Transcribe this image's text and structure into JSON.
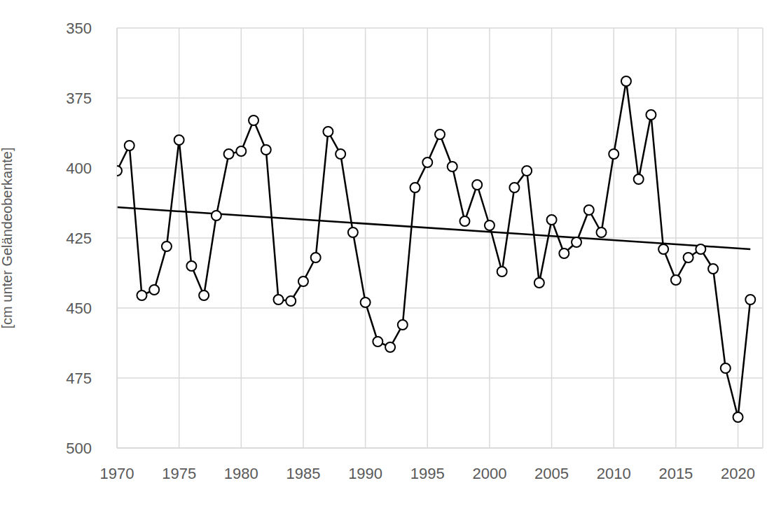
{
  "chart_data": {
    "type": "line",
    "y_label": "[cm unter Geländeoberkante]",
    "x": [
      1970,
      1971,
      1972,
      1973,
      1974,
      1975,
      1976,
      1977,
      1978,
      1979,
      1980,
      1981,
      1982,
      1983,
      1984,
      1985,
      1986,
      1987,
      1988,
      1989,
      1990,
      1991,
      1992,
      1993,
      1994,
      1995,
      1996,
      1997,
      1998,
      1999,
      2000,
      2001,
      2002,
      2003,
      2004,
      2005,
      2006,
      2007,
      2008,
      2009,
      2010,
      2011,
      2012,
      2013,
      2014,
      2015,
      2016,
      2017,
      2018,
      2019,
      2020,
      2021
    ],
    "series": [
      {
        "color": "#000000",
        "marker": "circle",
        "values": [
          401,
          392,
          445.5,
          443.5,
          428,
          390,
          435,
          445.5,
          417,
          395,
          394,
          383,
          393.5,
          447,
          447.5,
          440.5,
          432,
          387,
          395,
          423,
          448,
          462,
          464,
          456,
          407,
          398,
          388,
          399.5,
          419,
          406,
          420.5,
          437,
          407,
          401,
          441,
          418.5,
          430.5,
          426.5,
          415,
          423,
          395,
          369,
          404,
          381,
          429,
          440,
          432,
          429,
          436,
          471.5,
          489,
          447
        ]
      }
    ],
    "trend": {
      "x": [
        1970,
        2021
      ],
      "values": [
        414,
        429
      ],
      "color": "#000000"
    },
    "xlim": [
      1970,
      2022
    ],
    "xticks": [
      1970,
      1975,
      1980,
      1985,
      1990,
      1995,
      2000,
      2005,
      2010,
      2015,
      2020
    ],
    "ylim": [
      500,
      350
    ],
    "yticks": [
      350,
      375,
      400,
      425,
      450,
      475,
      500
    ],
    "grid": true
  }
}
